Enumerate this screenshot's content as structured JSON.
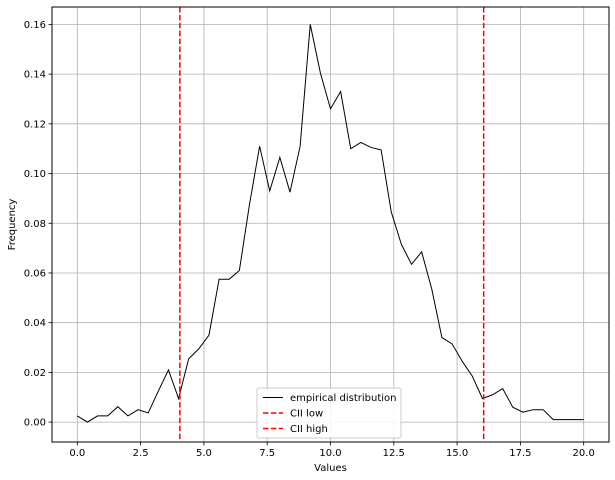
{
  "chart_data": {
    "type": "line",
    "title": "",
    "xlabel": "Values",
    "ylabel": "Frequency",
    "xlim": [
      -1.0,
      21.0
    ],
    "ylim": [
      -0.008,
      0.167
    ],
    "grid": true,
    "legend_position": "lower center",
    "x_ticks": [
      0.0,
      2.5,
      5.0,
      7.5,
      10.0,
      12.5,
      15.0,
      17.5,
      20.0
    ],
    "x_tick_labels": [
      "0.0",
      "2.5",
      "5.0",
      "7.5",
      "10.0",
      "12.5",
      "15.0",
      "17.5",
      "20.0"
    ],
    "y_ticks": [
      0.0,
      0.02,
      0.04,
      0.06,
      0.08,
      0.1,
      0.12,
      0.14,
      0.16
    ],
    "y_tick_labels": [
      "0.00",
      "0.02",
      "0.04",
      "0.06",
      "0.08",
      "0.10",
      "0.12",
      "0.14",
      "0.16"
    ],
    "series": [
      {
        "name": "empirical distribution",
        "color": "#000000",
        "style": "solid",
        "x": [
          0.0,
          0.4,
          0.8,
          1.2,
          1.6,
          2.0,
          2.4,
          2.8,
          3.2,
          3.6,
          4.0,
          4.4,
          4.8,
          5.2,
          5.6,
          6.0,
          6.4,
          6.8,
          7.2,
          7.6,
          8.0,
          8.4,
          8.8,
          9.2,
          9.6,
          10.0,
          10.4,
          10.8,
          11.2,
          11.6,
          12.0,
          12.4,
          12.8,
          13.2,
          13.6,
          14.0,
          14.4,
          14.8,
          15.2,
          15.6,
          16.0,
          16.4,
          16.8,
          17.2,
          17.6,
          18.0,
          18.4,
          18.8,
          19.2,
          19.6,
          20.0
        ],
        "y": [
          0.0025,
          0.0,
          0.0025,
          0.0025,
          0.0062,
          0.0025,
          0.005,
          0.0037,
          0.0125,
          0.021,
          0.0095,
          0.0255,
          0.0295,
          0.035,
          0.0575,
          0.0575,
          0.061,
          0.0875,
          0.111,
          0.093,
          0.1065,
          0.0925,
          0.111,
          0.16,
          0.1405,
          0.126,
          0.133,
          0.11,
          0.1125,
          0.1105,
          0.1095,
          0.0845,
          0.0715,
          0.0635,
          0.0685,
          0.0535,
          0.034,
          0.0315,
          0.0245,
          0.0185,
          0.0095,
          0.011,
          0.0135,
          0.006,
          0.004,
          0.005,
          0.005,
          0.001,
          0.001,
          0.001,
          0.001
        ]
      }
    ],
    "vlines": [
      {
        "name": "CII low",
        "x": 4.05,
        "color": "#ff0000",
        "style": "dashed"
      },
      {
        "name": "CII high",
        "x": 16.05,
        "color": "#ff0000",
        "style": "dashed"
      }
    ]
  }
}
